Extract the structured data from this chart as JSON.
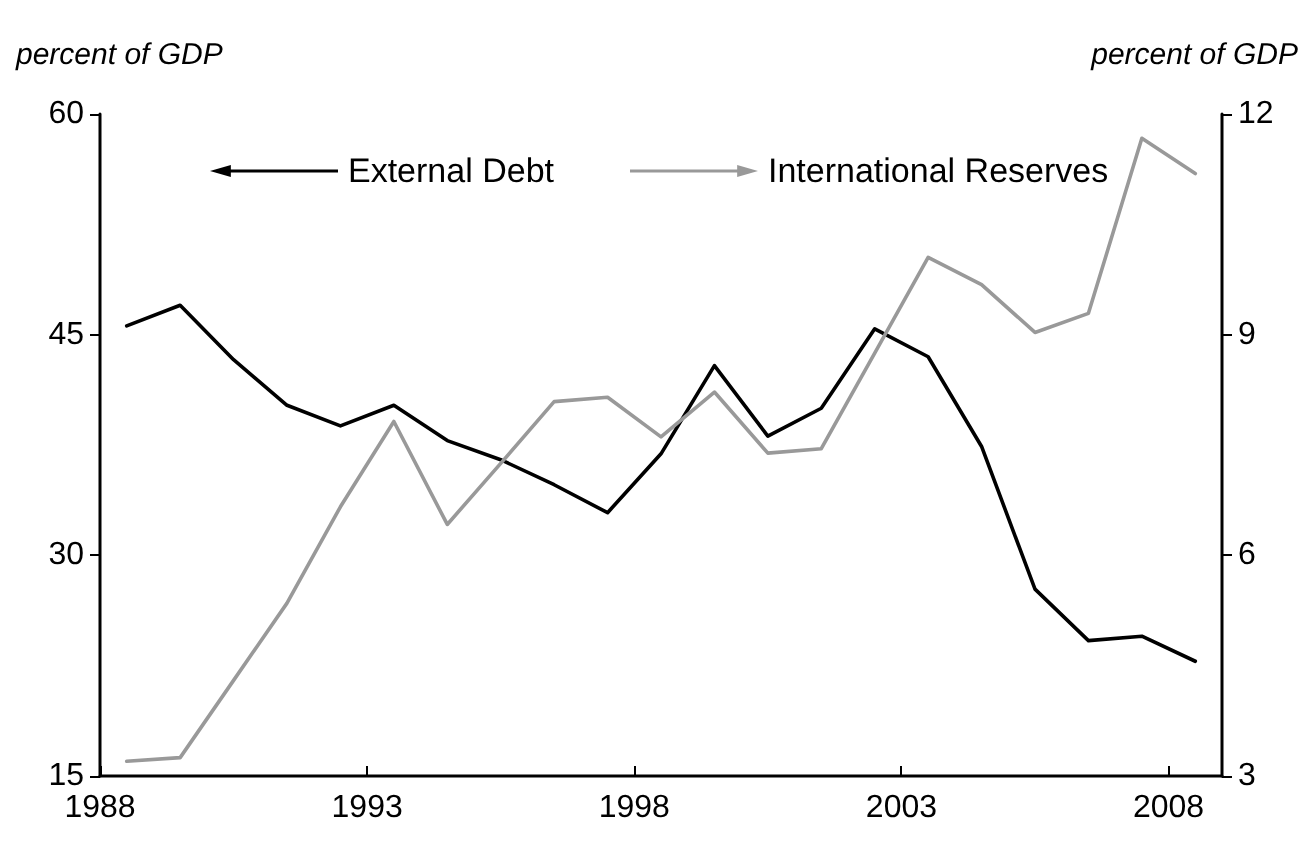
{
  "chart_data": {
    "type": "line",
    "ylabel": "percent of GDP",
    "y2label": "percent of GDP",
    "x": [
      1988.5,
      1989.5,
      1990.5,
      1991.5,
      1992.5,
      1993.5,
      1994.5,
      1995.5,
      1996.5,
      1997.5,
      1998.5,
      1999.5,
      2000.5,
      2001.5,
      2002.5,
      2003.5,
      2004.5,
      2005.5,
      2006.5,
      2007.5,
      2008.5
    ],
    "series": [
      {
        "name": "External Debt",
        "color": "#000000",
        "values": [
          45.6,
          47.0,
          43.3,
          40.2,
          38.8,
          40.2,
          37.8,
          36.5,
          34.8,
          32.9,
          36.9,
          42.9,
          38.1,
          40.0,
          45.4,
          43.5,
          37.4,
          27.7,
          24.2,
          24.5,
          22.8
        ]
      },
      {
        "name": "International Reserves",
        "color": "#999999",
        "axis": "y2",
        "values": [
          3.2,
          3.25,
          4.3,
          5.35,
          6.66,
          7.82,
          6.42,
          7.25,
          8.09,
          8.15,
          7.61,
          8.22,
          7.39,
          7.45,
          8.75,
          10.05,
          9.68,
          9.03,
          9.29,
          11.67,
          11.19
        ]
      }
    ],
    "xlim": [
      1988,
      2009
    ],
    "xticks": [
      1988,
      1993,
      1998,
      2003,
      2008
    ],
    "ylim": [
      15,
      60
    ],
    "yticks": [
      15,
      30,
      45,
      60
    ],
    "y2lim": [
      3,
      12
    ],
    "y2ticks": [
      3,
      6,
      9,
      12
    ],
    "grid": false,
    "legend": "top",
    "marker": "none",
    "line_style": "solid"
  }
}
